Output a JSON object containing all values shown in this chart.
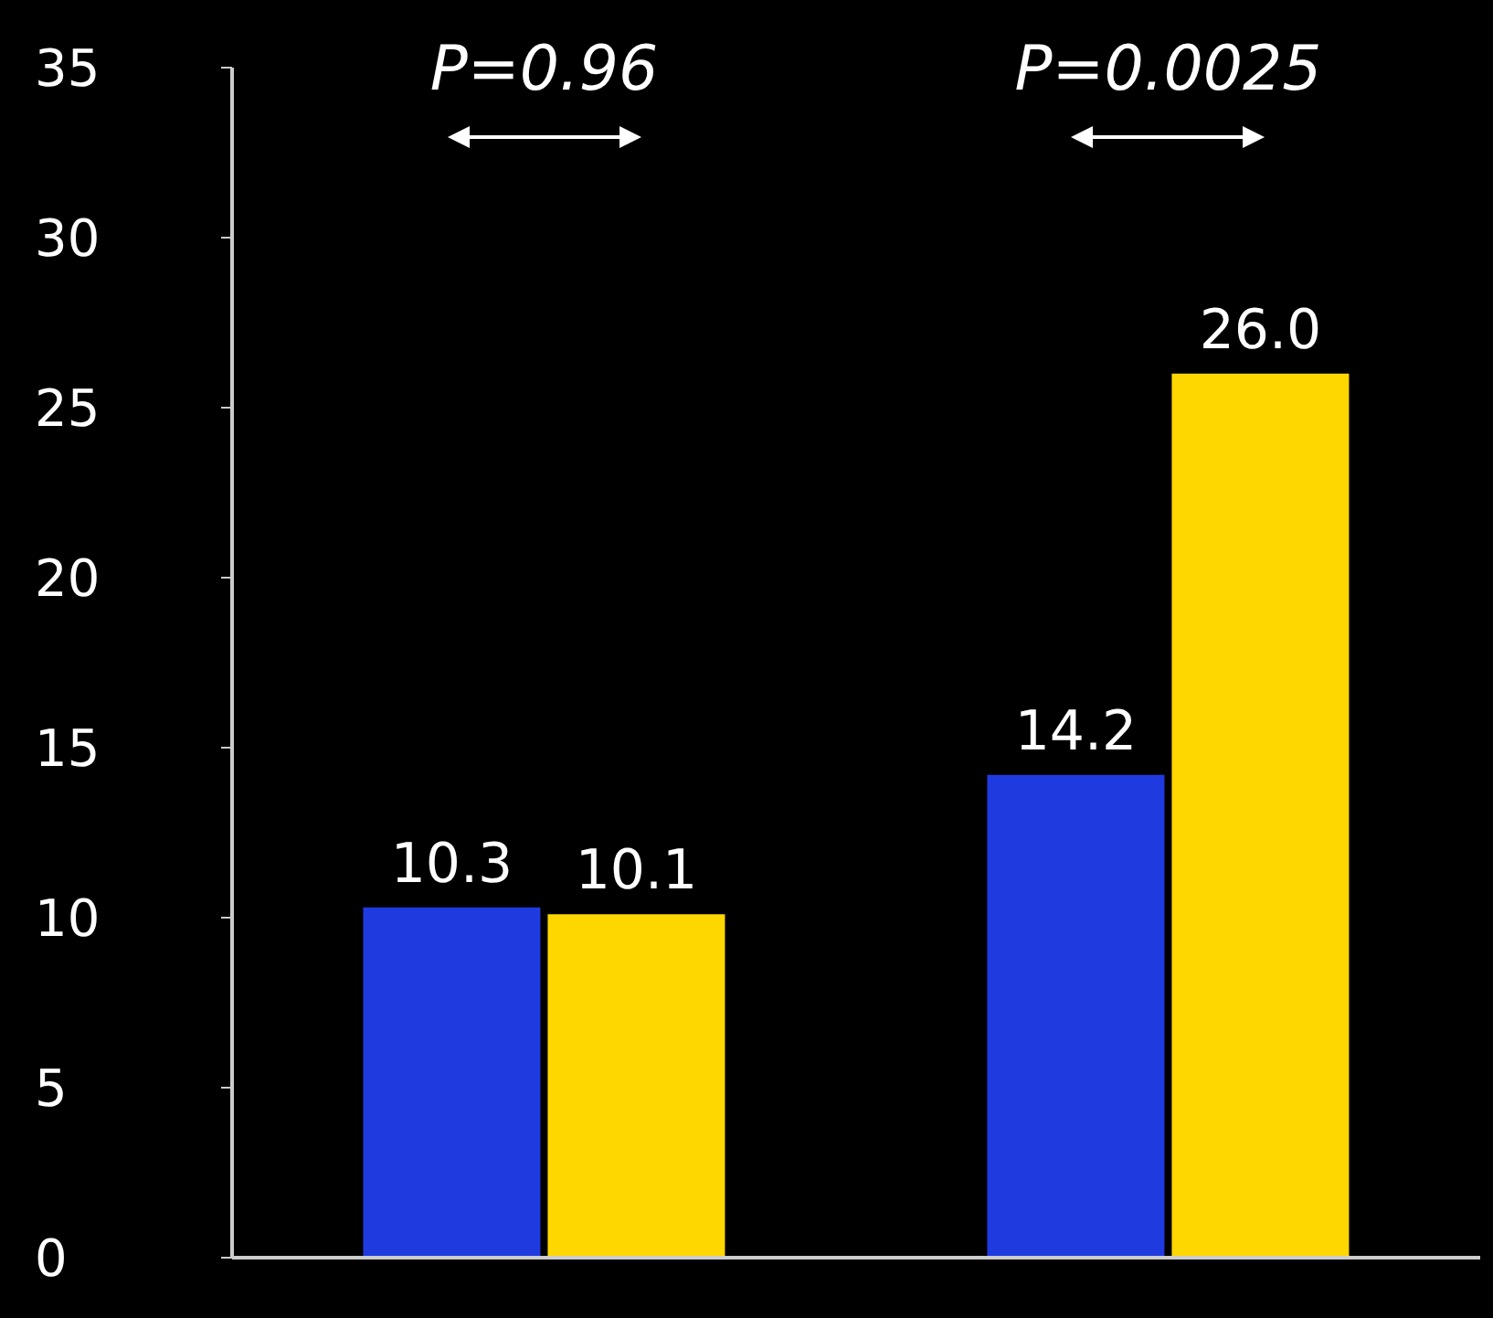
{
  "chart_data": {
    "type": "bar",
    "categories": [
      null,
      null
    ],
    "series": [
      {
        "color": "#1f3be0",
        "values": [
          10.3,
          14.2
        ],
        "value_labels": [
          "10.3",
          "14.2"
        ]
      },
      {
        "color": "#ffd700",
        "values": [
          10.1,
          26.0
        ],
        "value_labels": [
          "10.1",
          "26.0"
        ]
      }
    ],
    "ylim": [
      0,
      35
    ],
    "yticks": [
      0,
      5,
      10,
      15,
      20,
      25,
      30,
      35
    ],
    "grid": false,
    "legend": false,
    "annotations": [
      "P=0.96",
      "P=0.0025"
    ]
  }
}
